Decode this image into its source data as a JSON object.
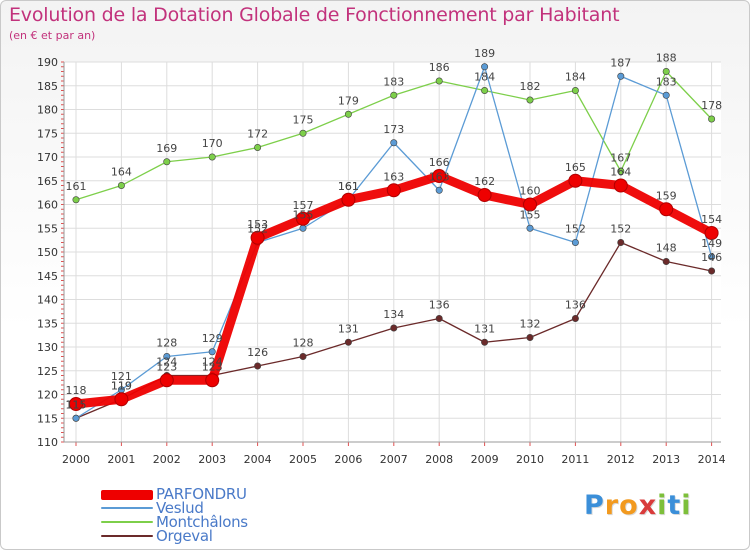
{
  "chart_data": {
    "type": "line",
    "title": "Evolution de la Dotation Globale de Fonctionnement par Habitant",
    "subtitle": "(en € et par an)",
    "x": [
      "2000",
      "2001",
      "2002",
      "2003",
      "2004",
      "2005",
      "2006",
      "2007",
      "2008",
      "2009",
      "2010",
      "2011",
      "2012",
      "2013",
      "2014"
    ],
    "ylim": [
      110,
      190
    ],
    "yticks": [
      110,
      115,
      120,
      125,
      130,
      135,
      140,
      145,
      150,
      155,
      160,
      165,
      170,
      175,
      180,
      185,
      190
    ],
    "grid": true,
    "legend_position": "bottom-left",
    "series": [
      {
        "name": "PARFONDRU",
        "color": "#ee0000",
        "values": [
          118,
          119,
          123,
          123,
          153,
          157,
          161,
          163,
          166,
          162,
          160,
          165,
          164,
          159,
          154
        ]
      },
      {
        "name": "Veslud",
        "color": "#5b9bd5",
        "values": [
          115,
          121,
          128,
          129,
          152,
          155,
          161,
          173,
          163,
          189,
          155,
          152,
          187,
          183,
          149
        ]
      },
      {
        "name": "Montchâlons",
        "color": "#7dcf4a",
        "values": [
          161,
          164,
          169,
          170,
          172,
          175,
          179,
          183,
          186,
          184,
          182,
          184,
          167,
          188,
          178
        ]
      },
      {
        "name": "Orgeval",
        "color": "#6b2a2a",
        "values": [
          115,
          119,
          124,
          124,
          126,
          128,
          131,
          134,
          136,
          131,
          132,
          136,
          152,
          148,
          146
        ]
      }
    ]
  },
  "logo": {
    "letters": [
      "P",
      "r",
      "o",
      "x",
      "i",
      "t",
      "i"
    ],
    "colors": [
      "#3b8fd9",
      "#f29a1f",
      "#f29a1f",
      "#d93b3b",
      "#7dbf3a",
      "#3b8fd9",
      "#7dbf3a"
    ]
  }
}
